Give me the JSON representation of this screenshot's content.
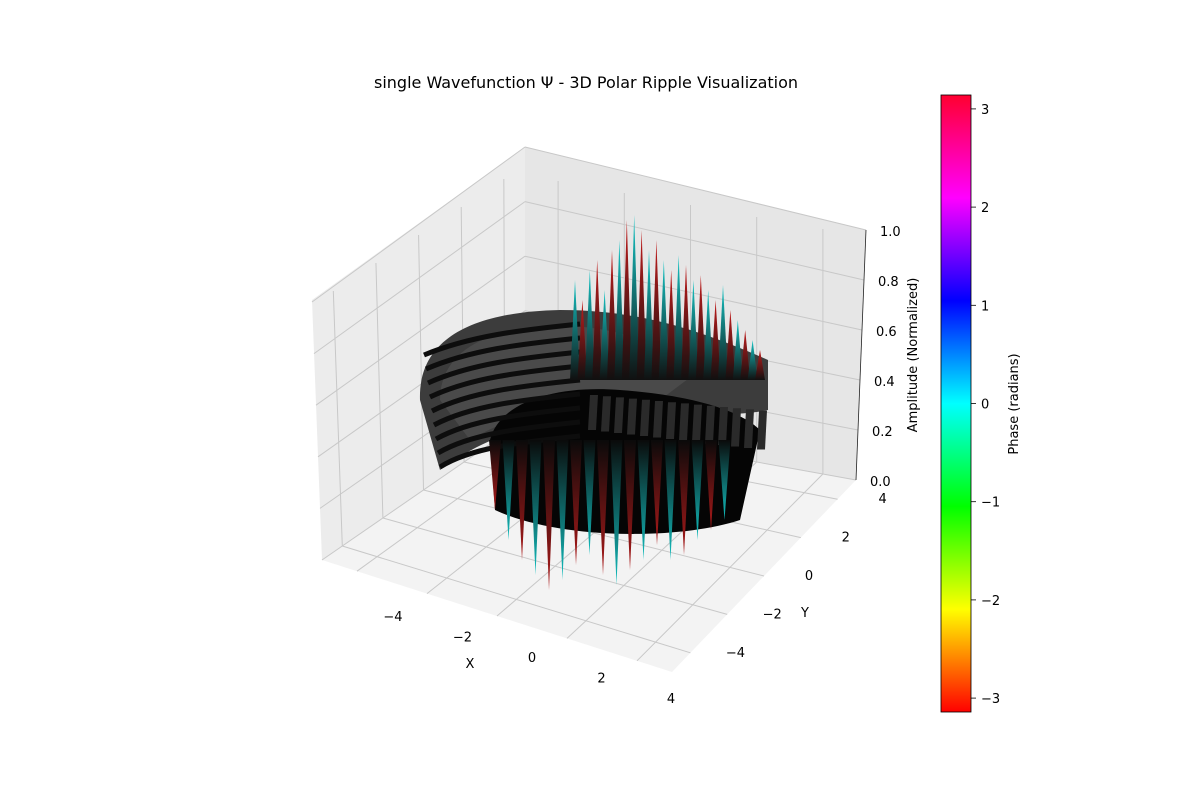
{
  "chart_data": [
    {
      "type": "surface3d",
      "title": "single Wavefunction Ψ - 3D Polar Ripple Visualization",
      "xlabel": "X",
      "ylabel": "Y",
      "zlabel": "Amplitude (Normalized)",
      "xlim": [
        -5,
        5
      ],
      "ylim": [
        -5,
        5
      ],
      "zlim": [
        0,
        1
      ],
      "x_ticks": [
        -4,
        -2,
        0,
        2,
        4
      ],
      "y_ticks": [
        -4,
        -2,
        0,
        2,
        4
      ],
      "z_ticks": [
        0.0,
        0.2,
        0.4,
        0.6,
        0.8,
        1.0
      ],
      "x_tick_labels": [
        "−4",
        "−2",
        "0",
        "2",
        "4"
      ],
      "y_tick_labels": [
        "−4",
        "−2",
        "0",
        "2",
        "4"
      ],
      "z_tick_labels": [
        "0.0",
        "0.2",
        "0.4",
        "0.6",
        "0.8",
        "1.0"
      ],
      "grid": true,
      "surface_colors": {
        "body": "#1a1a1a",
        "positive_phase": "#00c8c8",
        "negative_phase": "#c81e1e",
        "disk": "#555555"
      }
    },
    {
      "type": "colorbar",
      "label": "Phase (radians)",
      "range": [
        -3.14159,
        3.14159
      ],
      "ticks": [
        -3,
        -2,
        -1,
        0,
        1,
        2,
        3
      ],
      "tick_labels": [
        "−3",
        "−2",
        "−1",
        "0",
        "1",
        "2",
        "3"
      ],
      "colormap": "hsv"
    }
  ]
}
